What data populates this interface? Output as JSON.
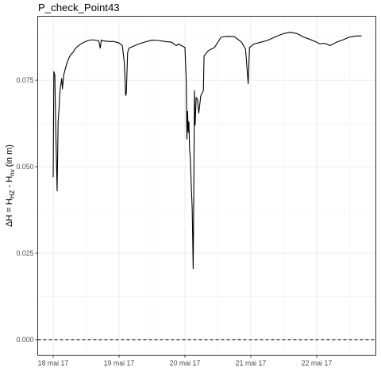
{
  "chart_data": {
    "type": "line",
    "title": "P_check_Point43",
    "ylabel_parts": {
      "prefix": "ΔH = H",
      "sub1": "HZ",
      "mid": " - H",
      "sub2": "nv",
      "suffix": " (in m)"
    },
    "xlabel": "",
    "x_ticks": [
      "18 mai 17",
      "19 mai 17",
      "20 mai 17",
      "21 mai 17",
      "22 mai 17"
    ],
    "y_ticks": [
      "0.000",
      "0.025",
      "0.050",
      "0.075"
    ],
    "x_range_days": [
      0,
      5
    ],
    "ylim": [
      -0.0045,
      0.0935
    ],
    "grid": true,
    "reference_line": {
      "y": 0.0,
      "style": "dashed"
    },
    "series": [
      {
        "x_unit": "days after 18 mai 17",
        "points": [
          [
            0.0,
            0.047
          ],
          [
            0.01,
            0.0775
          ],
          [
            0.025,
            0.0765
          ],
          [
            0.04,
            0.06
          ],
          [
            0.06,
            0.043
          ],
          [
            0.075,
            0.063
          ],
          [
            0.09,
            0.067
          ],
          [
            0.1,
            0.071
          ],
          [
            0.11,
            0.073
          ],
          [
            0.13,
            0.0755
          ],
          [
            0.14,
            0.0725
          ],
          [
            0.16,
            0.0765
          ],
          [
            0.18,
            0.078
          ],
          [
            0.21,
            0.08
          ],
          [
            0.24,
            0.0815
          ],
          [
            0.27,
            0.0825
          ],
          [
            0.3,
            0.083
          ],
          [
            0.33,
            0.084
          ],
          [
            0.37,
            0.0848
          ],
          [
            0.42,
            0.0855
          ],
          [
            0.47,
            0.086
          ],
          [
            0.53,
            0.0865
          ],
          [
            0.6,
            0.0867
          ],
          [
            0.66,
            0.0865
          ],
          [
            0.69,
            0.0865
          ],
          [
            0.715,
            0.0843
          ],
          [
            0.73,
            0.0866
          ],
          [
            0.76,
            0.0864
          ],
          [
            0.85,
            0.0862
          ],
          [
            0.92,
            0.0862
          ],
          [
            1.0,
            0.0858
          ],
          [
            1.05,
            0.085
          ],
          [
            1.08,
            0.08
          ],
          [
            1.1,
            0.0706
          ],
          [
            1.11,
            0.0712
          ],
          [
            1.13,
            0.083
          ],
          [
            1.15,
            0.0843
          ],
          [
            1.2,
            0.0847
          ],
          [
            1.3,
            0.0855
          ],
          [
            1.4,
            0.0861
          ],
          [
            1.5,
            0.0866
          ],
          [
            1.6,
            0.0865
          ],
          [
            1.7,
            0.0862
          ],
          [
            1.8,
            0.086
          ],
          [
            1.87,
            0.085
          ],
          [
            1.9,
            0.0855
          ],
          [
            2.0,
            0.0845
          ],
          [
            2.02,
            0.075
          ],
          [
            2.03,
            0.058
          ],
          [
            2.04,
            0.066
          ],
          [
            2.05,
            0.06
          ],
          [
            2.06,
            0.063
          ],
          [
            2.07,
            0.055
          ],
          [
            2.08,
            0.053
          ],
          [
            2.1,
            0.0425
          ],
          [
            2.11,
            0.038
          ],
          [
            2.125,
            0.0205
          ],
          [
            2.135,
            0.045
          ],
          [
            2.145,
            0.072
          ],
          [
            2.155,
            0.062
          ],
          [
            2.17,
            0.07
          ],
          [
            2.19,
            0.0695
          ],
          [
            2.21,
            0.0655
          ],
          [
            2.24,
            0.0705
          ],
          [
            2.28,
            0.072
          ],
          [
            2.29,
            0.082
          ],
          [
            2.35,
            0.0835
          ],
          [
            2.45,
            0.0845
          ],
          [
            2.55,
            0.0875
          ],
          [
            2.65,
            0.0877
          ],
          [
            2.75,
            0.0876
          ],
          [
            2.86,
            0.086
          ],
          [
            2.92,
            0.084
          ],
          [
            2.96,
            0.074
          ],
          [
            2.98,
            0.0845
          ],
          [
            3.05,
            0.0855
          ],
          [
            3.15,
            0.086
          ],
          [
            3.25,
            0.0865
          ],
          [
            3.4,
            0.0878
          ],
          [
            3.5,
            0.0885
          ],
          [
            3.6,
            0.0889
          ],
          [
            3.7,
            0.0885
          ],
          [
            3.8,
            0.0875
          ],
          [
            3.9,
            0.0868
          ],
          [
            4.0,
            0.086
          ],
          [
            4.05,
            0.0855
          ],
          [
            4.1,
            0.0857
          ],
          [
            4.15,
            0.0855
          ],
          [
            4.2,
            0.085
          ],
          [
            4.3,
            0.086
          ],
          [
            4.4,
            0.0867
          ],
          [
            4.5,
            0.0875
          ],
          [
            4.6,
            0.0878
          ],
          [
            4.68,
            0.0878
          ]
        ]
      }
    ]
  }
}
